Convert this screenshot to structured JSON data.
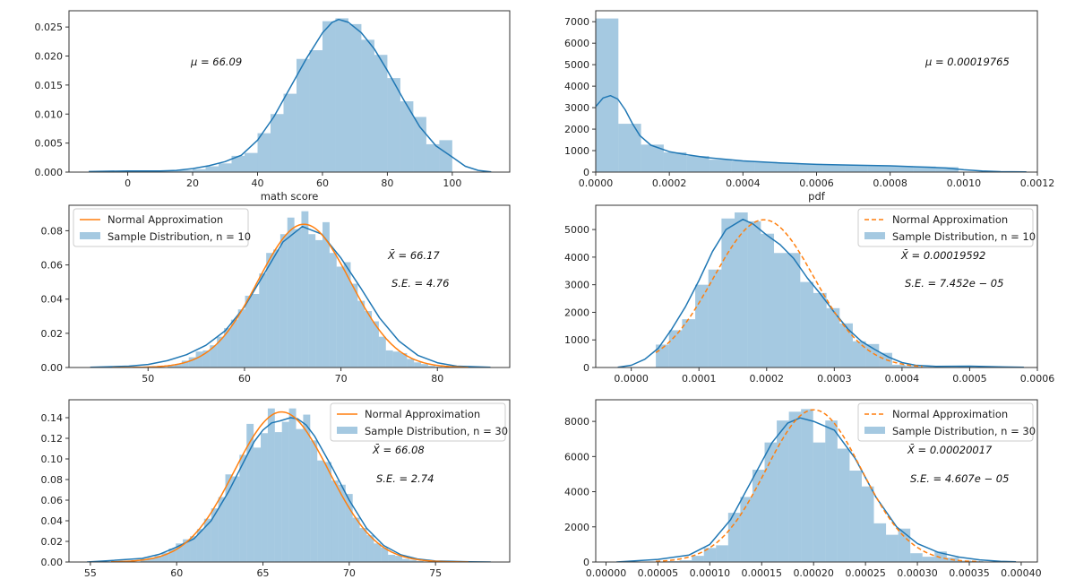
{
  "colors": {
    "histogram": "#1f77b4",
    "kde": "#1f77b4",
    "normal": "#ff7f0e",
    "axes": "#333333"
  },
  "chart_data": [
    {
      "type": "histogram",
      "xlabel": "math score",
      "xlim": [
        -18.1,
        117.7
      ],
      "ylim": [
        0,
        0.0278
      ],
      "xticks": [
        0,
        20,
        40,
        60,
        80,
        100
      ],
      "xtick_labels": [
        "0",
        "20",
        "40",
        "60",
        "80",
        "100"
      ],
      "yticks": [
        0,
        0.005,
        0.01,
        0.015,
        0.02,
        0.025
      ],
      "ytick_labels": [
        "0.000",
        "0.005",
        "0.010",
        "0.015",
        "0.020",
        "0.025"
      ],
      "bins": {
        "start": 0,
        "width": 4,
        "values": [
          0.0002,
          0.0002,
          0.0002,
          0.0002,
          0.0003,
          0.0005,
          0.001,
          0.0015,
          0.0028,
          0.0033,
          0.0067,
          0.01,
          0.0135,
          0.0195,
          0.021,
          0.026,
          0.0265,
          0.0255,
          0.0228,
          0.0202,
          0.0162,
          0.0122,
          0.0095,
          0.0048,
          0.0055
        ]
      },
      "kde": [
        [
          -12,
          0.0001
        ],
        [
          0,
          0.0002
        ],
        [
          10,
          0.0002
        ],
        [
          15,
          0.0003
        ],
        [
          20,
          0.0006
        ],
        [
          25,
          0.0011
        ],
        [
          30,
          0.0018
        ],
        [
          35,
          0.0029
        ],
        [
          40,
          0.0055
        ],
        [
          45,
          0.0095
        ],
        [
          50,
          0.0145
        ],
        [
          55,
          0.0195
        ],
        [
          60,
          0.024
        ],
        [
          63,
          0.0258
        ],
        [
          65,
          0.0263
        ],
        [
          68,
          0.0258
        ],
        [
          72,
          0.024
        ],
        [
          76,
          0.0212
        ],
        [
          80,
          0.0175
        ],
        [
          85,
          0.0125
        ],
        [
          90,
          0.0078
        ],
        [
          95,
          0.0045
        ],
        [
          100,
          0.0026
        ],
        [
          104,
          0.001
        ],
        [
          108,
          0.0003
        ],
        [
          112,
          5e-05
        ]
      ],
      "annotations": [
        "μ = 66.09"
      ],
      "legend": null
    },
    {
      "type": "histogram",
      "xlabel": "pdf",
      "xlim": [
        0,
        0.0012
      ],
      "ylim": [
        0,
        7510
      ],
      "xticks": [
        0,
        0.0002,
        0.0004,
        0.0006,
        0.0008,
        0.001,
        0.0012
      ],
      "xtick_labels": [
        "0.0000",
        "0.0002",
        "0.0004",
        "0.0006",
        "0.0008",
        "0.0010",
        "0.0012"
      ],
      "yticks": [
        0,
        1000,
        2000,
        3000,
        4000,
        5000,
        6000,
        7000
      ],
      "ytick_labels": [
        "0",
        "1000",
        "2000",
        "3000",
        "4000",
        "5000",
        "6000",
        "7000"
      ],
      "bins": {
        "start": 0,
        "width": 6.16e-05,
        "values": [
          7150,
          2250,
          1280,
          920,
          750,
          580,
          520,
          470,
          420,
          380,
          350,
          320,
          300,
          280,
          260,
          230
        ]
      },
      "kde": [
        [
          0,
          3050
        ],
        [
          2e-05,
          3450
        ],
        [
          4e-05,
          3560
        ],
        [
          6e-05,
          3400
        ],
        [
          8e-05,
          2900
        ],
        [
          0.0001,
          2250
        ],
        [
          0.00012,
          1700
        ],
        [
          0.00015,
          1250
        ],
        [
          0.0002,
          950
        ],
        [
          0.00025,
          800
        ],
        [
          0.0003,
          680
        ],
        [
          0.0004,
          520
        ],
        [
          0.0005,
          430
        ],
        [
          0.0006,
          360
        ],
        [
          0.0007,
          320
        ],
        [
          0.0008,
          290
        ],
        [
          0.0009,
          230
        ],
        [
          0.00095,
          190
        ],
        [
          0.001,
          110
        ],
        [
          0.00105,
          50
        ],
        [
          0.0011,
          20
        ],
        [
          0.00117,
          10
        ]
      ],
      "annotations": [
        "μ = 0.00019765"
      ],
      "legend": null
    },
    {
      "type": "histogram",
      "xlabel": "",
      "xlim": [
        41.8,
        87.5
      ],
      "ylim": [
        0,
        0.0949
      ],
      "xticks": [
        50,
        60,
        70,
        80
      ],
      "xtick_labels": [
        "50",
        "60",
        "70",
        "80"
      ],
      "yticks": [
        0,
        0.02,
        0.04,
        0.06,
        0.08
      ],
      "ytick_labels": [
        "0.00",
        "0.02",
        "0.04",
        "0.06",
        "0.08"
      ],
      "bins": {
        "start": 52.03,
        "width": 0.73,
        "values": [
          0.001,
          0.002,
          0.004,
          0.006,
          0.0093,
          0.01,
          0.013,
          0.018,
          0.023,
          0.028,
          0.034,
          0.042,
          0.043,
          0.055,
          0.067,
          0.069,
          0.078,
          0.0877,
          0.081,
          0.0914,
          0.078,
          0.0745,
          0.085,
          0.067,
          0.059,
          0.0616,
          0.049,
          0.039,
          0.033,
          0.027,
          0.018,
          0.01,
          0.0093,
          0.0084,
          0.005,
          0.003,
          0.002,
          0.001,
          0.0005
        ]
      },
      "kde": [
        [
          44,
          0.0001
        ],
        [
          48,
          0.0008
        ],
        [
          50,
          0.0018
        ],
        [
          52,
          0.004
        ],
        [
          54,
          0.0075
        ],
        [
          56,
          0.013
        ],
        [
          58,
          0.0215
        ],
        [
          60,
          0.0355
        ],
        [
          62,
          0.0545
        ],
        [
          64,
          0.0735
        ],
        [
          66,
          0.0825
        ],
        [
          68,
          0.078
        ],
        [
          70,
          0.064
        ],
        [
          72,
          0.047
        ],
        [
          74,
          0.029
        ],
        [
          76,
          0.0155
        ],
        [
          78,
          0.007
        ],
        [
          80,
          0.0028
        ],
        [
          82,
          0.0008
        ],
        [
          85.5,
          0.0001
        ]
      ],
      "normal": {
        "mean": 66.17,
        "sd": 4.76,
        "x_range": [
          46.3,
          83.2
        ],
        "style": "solid"
      },
      "annotations": [
        "X̄ = 66.17",
        "S.E. = 4.76"
      ],
      "legend": {
        "position": "upper-left",
        "entries": [
          "Normal Approximation",
          "Sample Distribution, n = 10"
        ]
      }
    },
    {
      "type": "histogram",
      "xlabel": "",
      "xlim": [
        -5.25e-05,
        0.0006
      ],
      "ylim": [
        0,
        5880
      ],
      "xticks": [
        0,
        0.0001,
        0.0002,
        0.0003,
        0.0004,
        0.0005,
        0.0006
      ],
      "xtick_labels": [
        "0.0000",
        "0.0001",
        "0.0002",
        "0.0003",
        "0.0004",
        "0.0005",
        "0.0006"
      ],
      "yticks": [
        0,
        1000,
        2000,
        3000,
        4000,
        5000
      ],
      "ytick_labels": [
        "0",
        "1000",
        "2000",
        "3000",
        "4000",
        "5000"
      ],
      "bins": {
        "start": 3.63e-05,
        "width": 1.94e-05,
        "values": [
          830,
          1350,
          1750,
          3000,
          3550,
          5400,
          5620,
          5300,
          4850,
          4150,
          4150,
          3100,
          2700,
          2150,
          1600,
          950,
          850,
          530,
          100,
          50,
          30,
          20,
          20,
          40,
          20
        ]
      },
      "kde": [
        [
          -2e-05,
          10
        ],
        [
          0,
          80
        ],
        [
          2e-05,
          300
        ],
        [
          4e-05,
          700
        ],
        [
          6e-05,
          1400
        ],
        [
          8e-05,
          2200
        ],
        [
          0.0001,
          3150
        ],
        [
          0.00012,
          4200
        ],
        [
          0.00014,
          5000
        ],
        [
          0.000165,
          5370
        ],
        [
          0.00018,
          5200
        ],
        [
          0.0002,
          4800
        ],
        [
          0.00022,
          4450
        ],
        [
          0.00024,
          3950
        ],
        [
          0.00026,
          3250
        ],
        [
          0.00028,
          2650
        ],
        [
          0.0003,
          2000
        ],
        [
          0.00032,
          1400
        ],
        [
          0.00034,
          950
        ],
        [
          0.00036,
          650
        ],
        [
          0.00038,
          380
        ],
        [
          0.0004,
          180
        ],
        [
          0.00042,
          80
        ],
        [
          0.00045,
          40
        ],
        [
          0.0005,
          50
        ],
        [
          0.00055,
          20
        ],
        [
          0.00058,
          10
        ]
      ],
      "normal": {
        "mean": 0.00019592,
        "sd": 7.452e-05,
        "x_range": [
          3.63e-05,
          0.00043
        ],
        "style": "dashed"
      },
      "annotations": [
        "X̄ = 0.00019592",
        "S.E. = 7.452e − 05"
      ],
      "legend": {
        "position": "upper-right",
        "entries": [
          "Normal Approximation",
          "Sample Distribution, n = 10"
        ]
      }
    },
    {
      "type": "histogram",
      "xlabel": "",
      "xlim": [
        53.76,
        79.3
      ],
      "ylim": [
        0,
        0.1574
      ],
      "xticks": [
        55,
        60,
        65,
        70,
        75
      ],
      "xtick_labels": [
        "55",
        "60",
        "65",
        "70",
        "75"
      ],
      "yticks": [
        0,
        0.02,
        0.04,
        0.06,
        0.08,
        0.1,
        0.12,
        0.14
      ],
      "ytick_labels": [
        "0.00",
        "0.02",
        "0.04",
        "0.06",
        "0.08",
        "0.10",
        "0.12",
        "0.14"
      ],
      "bins": {
        "start": 57.9,
        "width": 0.41,
        "values": [
          0.003,
          0.004,
          0.006,
          0.009,
          0.013,
          0.018,
          0.022,
          0.025,
          0.032,
          0.042,
          0.052,
          0.063,
          0.085,
          0.083,
          0.104,
          0.134,
          0.111,
          0.125,
          0.149,
          0.126,
          0.136,
          0.149,
          0.129,
          0.143,
          0.118,
          0.0985,
          0.097,
          0.079,
          0.075,
          0.066,
          0.043,
          0.033,
          0.026,
          0.018,
          0.014,
          0.007,
          0.006,
          0.003,
          0.002,
          0.001
        ]
      },
      "kde": [
        [
          54.8,
          0
        ],
        [
          56,
          0.0012
        ],
        [
          58,
          0.0035
        ],
        [
          59,
          0.0075
        ],
        [
          60,
          0.0145
        ],
        [
          61,
          0.0225
        ],
        [
          62,
          0.04
        ],
        [
          63,
          0.068
        ],
        [
          64,
          0.101
        ],
        [
          64.5,
          0.117
        ],
        [
          65,
          0.128
        ],
        [
          65.5,
          0.135
        ],
        [
          66,
          0.137
        ],
        [
          66.6,
          0.14
        ],
        [
          67,
          0.139
        ],
        [
          67.5,
          0.133
        ],
        [
          68,
          0.122
        ],
        [
          69,
          0.092
        ],
        [
          70,
          0.06
        ],
        [
          71,
          0.033
        ],
        [
          72,
          0.016
        ],
        [
          73,
          0.007
        ],
        [
          74,
          0.0028
        ],
        [
          75,
          0.001
        ],
        [
          77,
          0.0002
        ],
        [
          78.2,
          0
        ]
      ],
      "normal": {
        "mean": 66.08,
        "sd": 2.74,
        "x_range": [
          56.2,
          76.9
        ],
        "style": "solid"
      },
      "annotations": [
        "X̄ = 66.08",
        "S.E. = 2.74"
      ],
      "legend": {
        "position": "upper-right",
        "entries": [
          "Normal Approximation",
          "Sample Distribution, n = 30"
        ]
      }
    },
    {
      "type": "histogram",
      "xlabel": "",
      "xlim": [
        -9.9e-06,
        0.0004156
      ],
      "ylim": [
        0,
        9230
      ],
      "xticks": [
        0,
        5e-05,
        0.0001,
        0.00015,
        0.0002,
        0.00025,
        0.0003,
        0.00035,
        0.0004
      ],
      "xtick_labels": [
        "0.00000",
        "0.00005",
        "0.00010",
        "0.00015",
        "0.00020",
        "0.00025",
        "0.00030",
        "0.00035",
        "0.00040"
      ],
      "yticks": [
        0,
        2000,
        4000,
        6000,
        8000
      ],
      "ytick_labels": [
        "0",
        "2000",
        "4000",
        "6000",
        "8000"
      ],
      "bins": {
        "start": 5.92e-05,
        "width": 1.17e-05,
        "values": [
          50,
          100,
          350,
          800,
          950,
          2800,
          3700,
          5250,
          6800,
          8050,
          8550,
          8700,
          6800,
          8050,
          6450,
          5200,
          4300,
          2200,
          1550,
          1900,
          500,
          300,
          600,
          250,
          80,
          50
        ]
      },
      "kde": [
        [
          1e-05,
          0
        ],
        [
          5e-05,
          150
        ],
        [
          8e-05,
          400
        ],
        [
          0.0001,
          1000
        ],
        [
          0.00012,
          2400
        ],
        [
          0.00014,
          4600
        ],
        [
          0.00016,
          6800
        ],
        [
          0.000175,
          7900
        ],
        [
          0.000187,
          8200
        ],
        [
          0.0002,
          8000
        ],
        [
          0.00022,
          7500
        ],
        [
          0.00024,
          5900
        ],
        [
          0.00026,
          3700
        ],
        [
          0.00028,
          2000
        ],
        [
          0.0003,
          1050
        ],
        [
          0.00032,
          550
        ],
        [
          0.00034,
          280
        ],
        [
          0.00036,
          120
        ],
        [
          0.00038,
          40
        ],
        [
          0.000395,
          10
        ]
      ],
      "normal": {
        "mean": 0.00020017,
        "sd": 4.607e-05,
        "x_range": [
          4.8e-05,
          0.00036
        ],
        "style": "dashed"
      },
      "annotations": [
        "X̄ = 0.00020017",
        "S.E. = 4.607e − 05"
      ],
      "legend": {
        "position": "upper-right",
        "entries": [
          "Normal Approximation",
          "Sample Distribution, n = 30"
        ]
      }
    }
  ]
}
